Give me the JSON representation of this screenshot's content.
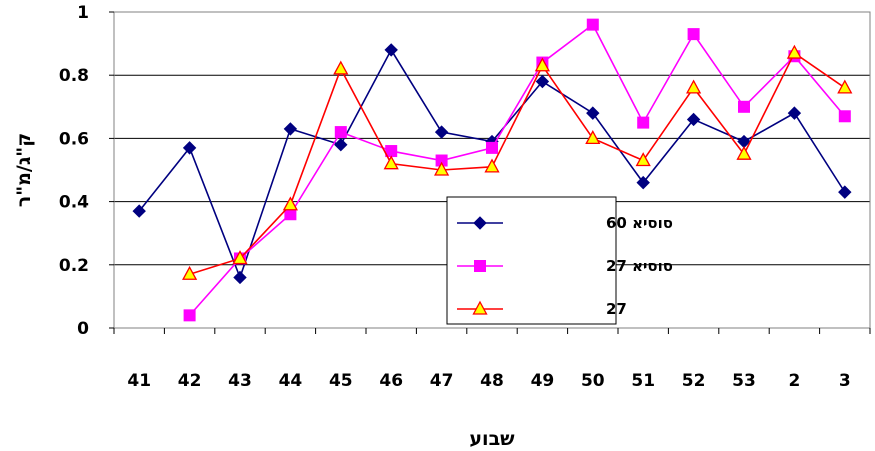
{
  "chart_data": {
    "type": "line",
    "categories": [
      "41",
      "42",
      "43",
      "44",
      "45",
      "46",
      "47",
      "48",
      "49",
      "50",
      "51",
      "52",
      "53",
      "2",
      "3"
    ],
    "xlabel": "שבוע",
    "ylabel": "ק\"ג/מ\"ר",
    "ylim": [
      0,
      1
    ],
    "yticks": [
      "0",
      "0.2",
      "0.4",
      "0.6",
      "0.8",
      "1"
    ],
    "grid": "horizontal",
    "legend_position": "center",
    "series": [
      {
        "name": "סוסיא 60",
        "color": "#000080",
        "marker": "diamond",
        "values": [
          0.37,
          0.57,
          0.16,
          0.63,
          0.58,
          0.88,
          0.62,
          0.59,
          0.78,
          0.68,
          0.46,
          0.66,
          0.59,
          0.68,
          0.43
        ]
      },
      {
        "name": "סוסיא 27",
        "color": "#FF00FF",
        "marker": "square",
        "values": [
          null,
          0.04,
          0.22,
          0.36,
          0.62,
          0.56,
          0.53,
          0.57,
          0.84,
          0.96,
          0.65,
          0.93,
          0.7,
          0.86,
          0.67
        ]
      },
      {
        "name": "27",
        "color": "#FF0000",
        "marker": "triangle",
        "marker_fill": "#FFFF00",
        "values": [
          null,
          0.17,
          0.22,
          0.39,
          0.82,
          0.52,
          0.5,
          0.51,
          0.83,
          0.6,
          0.53,
          0.76,
          0.55,
          0.87,
          0.76
        ]
      }
    ]
  }
}
